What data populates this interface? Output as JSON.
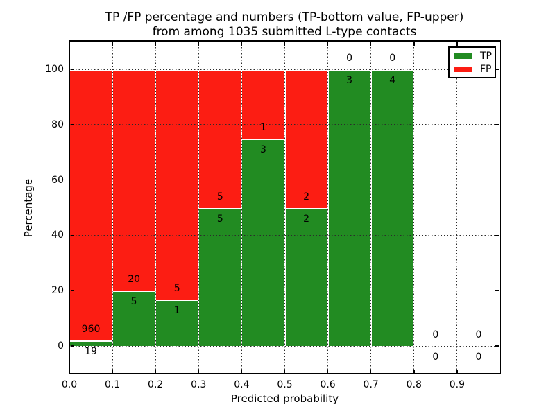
{
  "chart_data": {
    "type": "bar",
    "subtype": "stacked-percentage-histogram",
    "title": "TP /FP percentage and numbers (TP-bottom value, FP-upper)\nfrom among 1035 submitted L-type contacts",
    "title_line1": "TP /FP percentage and numbers (TP-bottom value, FP-upper)",
    "title_line2": "from among 1035 submitted L-type contacts",
    "xlabel": "Predicted probability",
    "ylabel": "Percentage",
    "total_contacts": 1035,
    "xlim": [
      0.0,
      1.0
    ],
    "ylim": [
      0,
      100
    ],
    "grid": true,
    "x_tick_labels": [
      "0.0",
      "0.1",
      "0.2",
      "0.3",
      "0.4",
      "0.5",
      "0.6",
      "0.7",
      "0.8",
      "0.9"
    ],
    "y_ticks": [
      0,
      20,
      40,
      60,
      80,
      100
    ],
    "y_tick_labels": [
      "0",
      "20",
      "40",
      "60",
      "80",
      "100"
    ],
    "categories": [
      "0.0-0.1",
      "0.1-0.2",
      "0.2-0.3",
      "0.3-0.4",
      "0.4-0.5",
      "0.5-0.6",
      "0.6-0.7",
      "0.7-0.8",
      "0.8-0.9",
      "0.9-1.0"
    ],
    "series": [
      {
        "name": "TP",
        "color": "#228b22",
        "counts": [
          19,
          5,
          1,
          5,
          3,
          2,
          3,
          4,
          0,
          0
        ]
      },
      {
        "name": "FP",
        "color": "#fc1d13",
        "counts": [
          960,
          20,
          5,
          5,
          1,
          2,
          0,
          0,
          0,
          0
        ]
      }
    ],
    "bins": [
      {
        "x_start": 0.0,
        "x_end": 0.1,
        "tp": 19,
        "fp": 960,
        "tp_pct": 1.94
      },
      {
        "x_start": 0.1,
        "x_end": 0.2,
        "tp": 5,
        "fp": 20,
        "tp_pct": 20
      },
      {
        "x_start": 0.2,
        "x_end": 0.3,
        "tp": 1,
        "fp": 5,
        "tp_pct": 16.67
      },
      {
        "x_start": 0.3,
        "x_end": 0.4,
        "tp": 5,
        "fp": 5,
        "tp_pct": 50
      },
      {
        "x_start": 0.4,
        "x_end": 0.5,
        "tp": 3,
        "fp": 1,
        "tp_pct": 75
      },
      {
        "x_start": 0.5,
        "x_end": 0.6,
        "tp": 2,
        "fp": 2,
        "tp_pct": 50
      },
      {
        "x_start": 0.6,
        "x_end": 0.7,
        "tp": 3,
        "fp": 0,
        "tp_pct": 100
      },
      {
        "x_start": 0.7,
        "x_end": 0.8,
        "tp": 4,
        "fp": 0,
        "tp_pct": 100
      },
      {
        "x_start": 0.8,
        "x_end": 0.9,
        "tp": 0,
        "fp": 0,
        "tp_pct": 0
      },
      {
        "x_start": 0.9,
        "x_end": 1.0,
        "tp": 0,
        "fp": 0,
        "tp_pct": 0
      }
    ],
    "legend": {
      "position": "upper right",
      "entries": [
        {
          "label": "TP",
          "color": "#228b22"
        },
        {
          "label": "FP",
          "color": "#fc1d13"
        }
      ]
    }
  }
}
